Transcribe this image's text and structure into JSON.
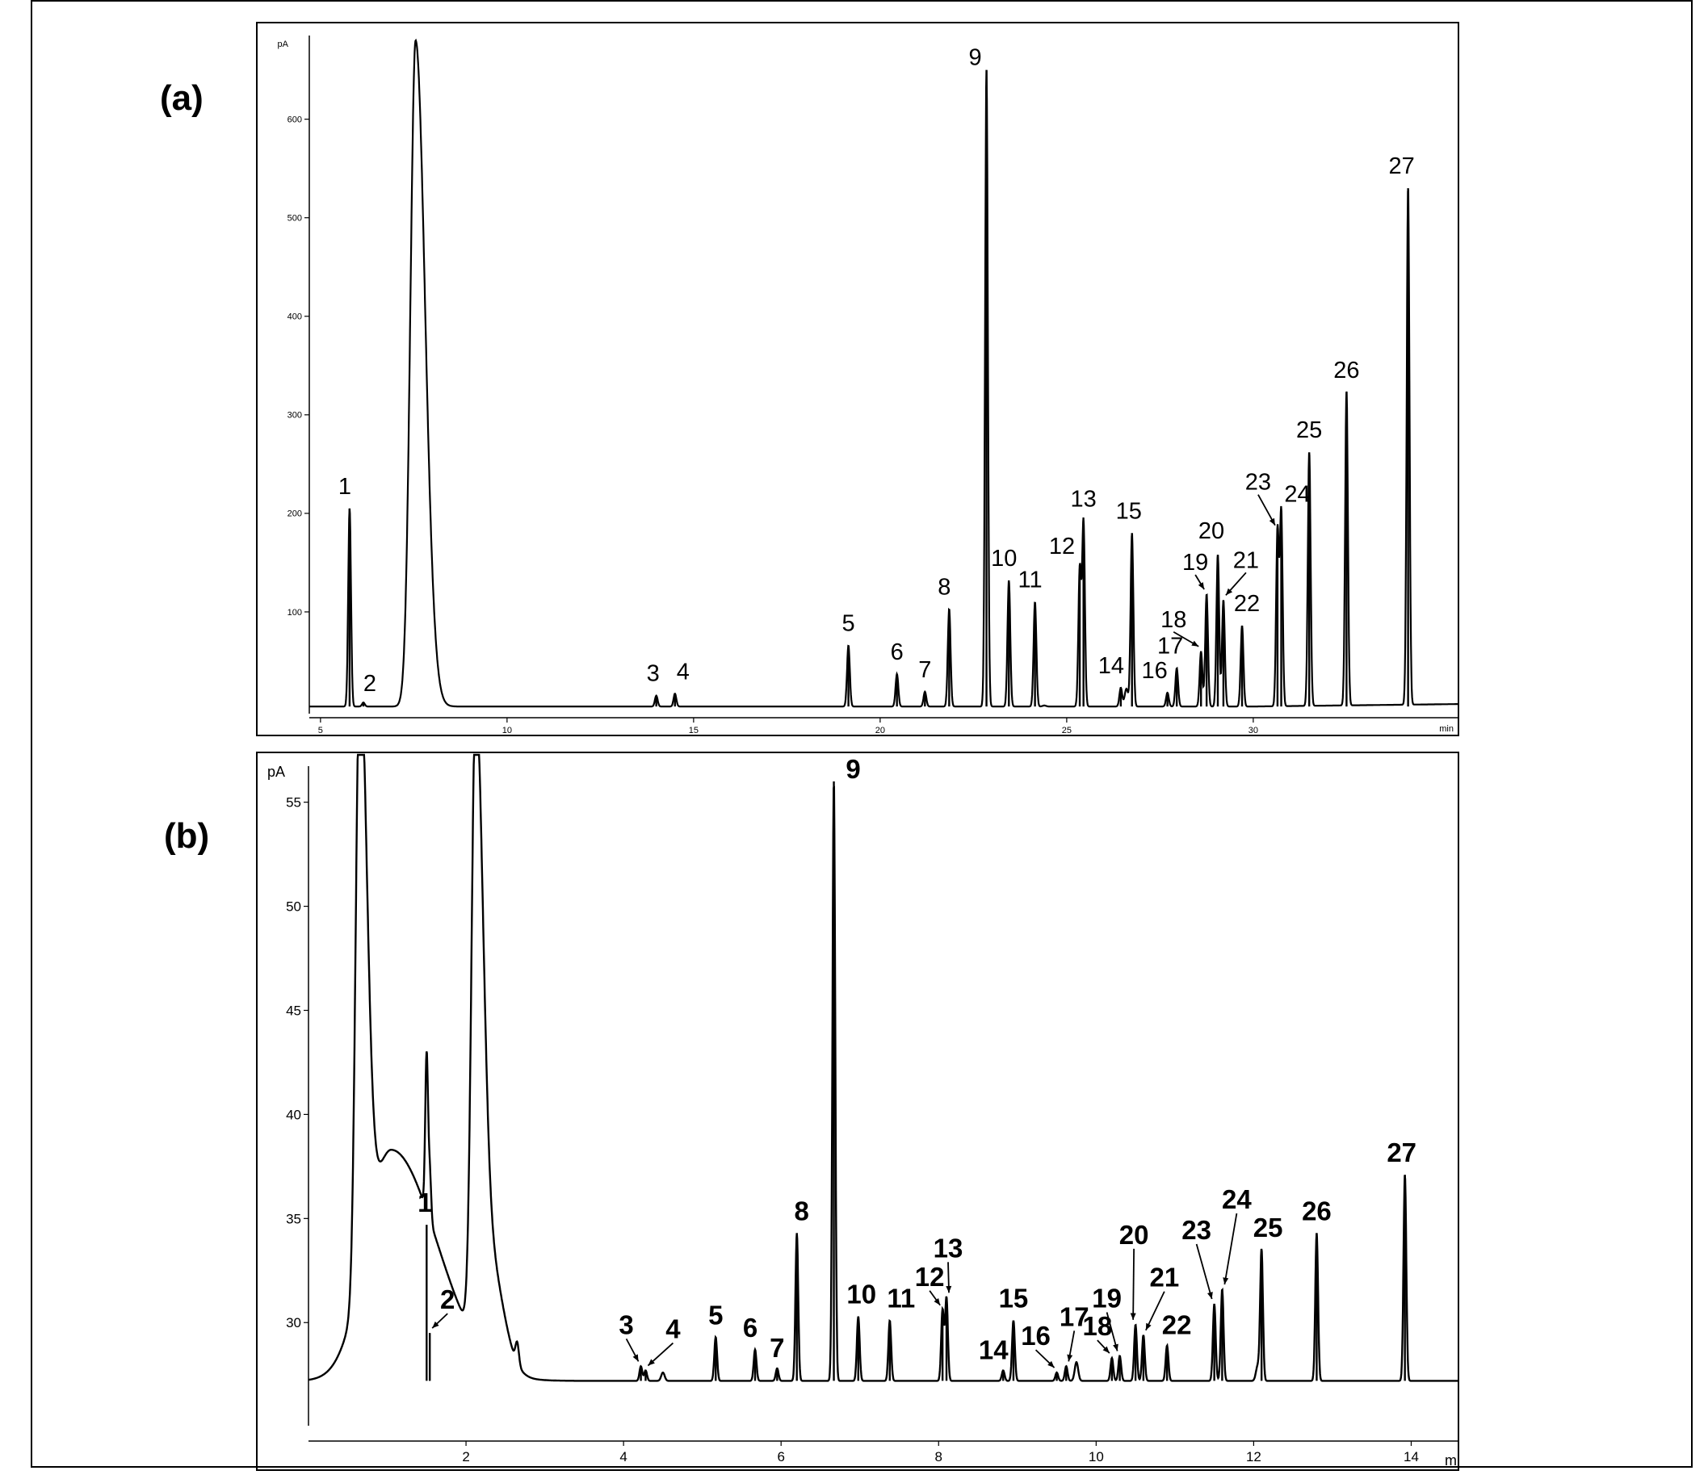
{
  "panels": [
    {
      "tag": "(a)",
      "y_unit": "pA",
      "x_unit": "min",
      "chart_data": {
        "type": "line",
        "x_ticks": [
          "5",
          "10",
          "15",
          "20",
          "25",
          "30"
        ],
        "y_ticks": [
          "100",
          "200",
          "300",
          "400",
          "500",
          "600"
        ],
        "xlim": [
          4.7,
          35.5
        ],
        "ylim": [
          0,
          680
        ],
        "baseline": 4,
        "solvent_peaks": [
          {
            "x": 7.55,
            "y": 680,
            "width": 0.14
          }
        ],
        "minor_peaks": [
          {
            "x": 24.4,
            "y": 5
          },
          {
            "x": 26.6,
            "y": 22
          }
        ],
        "peaks": [
          {
            "label": "1",
            "x": 5.78,
            "y": 205
          },
          {
            "label": "2",
            "x": 6.15,
            "y": 8
          },
          {
            "label": "3",
            "x": 14.0,
            "y": 15
          },
          {
            "label": "4",
            "x": 14.5,
            "y": 17
          },
          {
            "label": "5",
            "x": 19.15,
            "y": 66
          },
          {
            "label": "6",
            "x": 20.45,
            "y": 37
          },
          {
            "label": "7",
            "x": 21.2,
            "y": 19
          },
          {
            "label": "8",
            "x": 21.85,
            "y": 103
          },
          {
            "label": "9",
            "x": 22.85,
            "y": 650
          },
          {
            "label": "10",
            "x": 23.45,
            "y": 132
          },
          {
            "label": "11",
            "x": 24.15,
            "y": 110
          },
          {
            "label": "12",
            "x": 25.35,
            "y": 144
          },
          {
            "label": "13",
            "x": 25.45,
            "y": 192
          },
          {
            "label": "14",
            "x": 26.45,
            "y": 23
          },
          {
            "label": "15",
            "x": 26.75,
            "y": 180
          },
          {
            "label": "16",
            "x": 27.7,
            "y": 18
          },
          {
            "label": "17",
            "x": 27.95,
            "y": 43
          },
          {
            "label": "18",
            "x": 28.6,
            "y": 60
          },
          {
            "label": "19",
            "x": 28.75,
            "y": 118
          },
          {
            "label": "20",
            "x": 29.05,
            "y": 158
          },
          {
            "label": "21",
            "x": 29.2,
            "y": 112
          },
          {
            "label": "22",
            "x": 29.7,
            "y": 86
          },
          {
            "label": "23",
            "x": 30.65,
            "y": 183
          },
          {
            "label": "24",
            "x": 30.75,
            "y": 202
          },
          {
            "label": "25",
            "x": 31.5,
            "y": 262
          },
          {
            "label": "26",
            "x": 32.5,
            "y": 323
          },
          {
            "label": "27",
            "x": 34.15,
            "y": 530
          }
        ]
      }
    },
    {
      "tag": "(b)",
      "y_unit": "pA",
      "x_unit": "mi",
      "chart_data": {
        "type": "line",
        "x_ticks": [
          "2",
          "4",
          "6",
          "8",
          "10",
          "12",
          "14"
        ],
        "y_ticks": [
          "30",
          "35",
          "40",
          "45",
          "50",
          "55"
        ],
        "xlim": [
          0,
          14.6
        ],
        "ylim": [
          25.2,
          56.5
        ],
        "baseline": 27.2,
        "solvent_peaks": [
          {
            "x": 0.65,
            "y": 56.5,
            "width": 0.05
          },
          {
            "x": 1.05,
            "y": 38.3,
            "width": 0.32
          },
          {
            "x": 2.12,
            "y": 56.5,
            "width": 0.05
          },
          {
            "x": 2.28,
            "y": 32.5,
            "width": 0.1
          }
        ],
        "minor_peaks": [
          {
            "x": 2.65,
            "y": 28.2
          },
          {
            "x": 4.5,
            "y": 27.6
          },
          {
            "x": 9.75,
            "y": 28.1
          },
          {
            "x": 12.05,
            "y": 27.9
          }
        ],
        "peaks": [
          {
            "label": "1",
            "x": 1.5,
            "y": 34.7
          },
          {
            "label": "2",
            "x": 1.54,
            "y": 29.5
          },
          {
            "label": "3",
            "x": 4.22,
            "y": 27.9
          },
          {
            "label": "4",
            "x": 4.28,
            "y": 27.7
          },
          {
            "label": "5",
            "x": 5.17,
            "y": 29.3
          },
          {
            "label": "6",
            "x": 5.67,
            "y": 28.7
          },
          {
            "label": "7",
            "x": 5.95,
            "y": 27.8
          },
          {
            "label": "8",
            "x": 6.2,
            "y": 34.3
          },
          {
            "label": "9",
            "x": 6.67,
            "y": 56.0
          },
          {
            "label": "10",
            "x": 6.98,
            "y": 30.3
          },
          {
            "label": "11",
            "x": 7.38,
            "y": 30.1
          },
          {
            "label": "12",
            "x": 8.05,
            "y": 30.6
          },
          {
            "label": "13",
            "x": 8.1,
            "y": 31.2
          },
          {
            "label": "14",
            "x": 8.82,
            "y": 27.7
          },
          {
            "label": "15",
            "x": 8.95,
            "y": 30.1
          },
          {
            "label": "16",
            "x": 9.5,
            "y": 27.6
          },
          {
            "label": "17",
            "x": 9.62,
            "y": 27.9
          },
          {
            "label": "18",
            "x": 10.2,
            "y": 28.3
          },
          {
            "label": "19",
            "x": 10.3,
            "y": 28.4
          },
          {
            "label": "20",
            "x": 10.5,
            "y": 29.9
          },
          {
            "label": "21",
            "x": 10.6,
            "y": 29.4
          },
          {
            "label": "22",
            "x": 10.9,
            "y": 28.9
          },
          {
            "label": "23",
            "x": 11.5,
            "y": 30.9
          },
          {
            "label": "24",
            "x": 11.6,
            "y": 31.6
          },
          {
            "label": "25",
            "x": 12.1,
            "y": 33.5
          },
          {
            "label": "26",
            "x": 12.8,
            "y": 34.3
          },
          {
            "label": "27",
            "x": 13.92,
            "y": 37.1
          }
        ]
      }
    }
  ]
}
